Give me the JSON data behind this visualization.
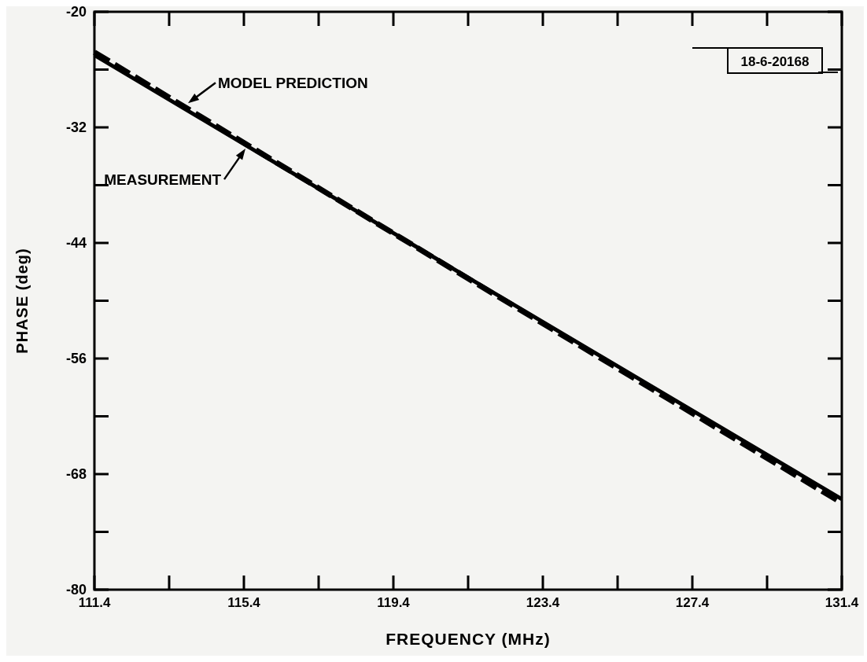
{
  "chart_data": {
    "type": "line",
    "xlabel": "FREQUENCY (MHz)",
    "ylabel": "PHASE (deg)",
    "x": [
      111.4,
      121.4,
      131.4
    ],
    "series": [
      {
        "name": "MODEL PREDICTION",
        "color": "#000000",
        "line_style": "dashed",
        "values": [
          -24.2,
          -47.7,
          -71.0
        ]
      },
      {
        "name": "MEASUREMENT",
        "color": "#000000",
        "line_style": "solid",
        "values": [
          -24.5,
          -47.6,
          -70.6
        ]
      }
    ],
    "xlim": [
      111.4,
      131.4
    ],
    "xticks": [
      111.4,
      115.4,
      119.4,
      123.4,
      127.4,
      131.4
    ],
    "ylim": [
      -80,
      -20
    ],
    "yticks": [
      -80,
      -68,
      -56,
      -44,
      -32,
      -20
    ],
    "annotations": [
      "18-6-20168"
    ],
    "grid": false,
    "legend": "top left"
  }
}
